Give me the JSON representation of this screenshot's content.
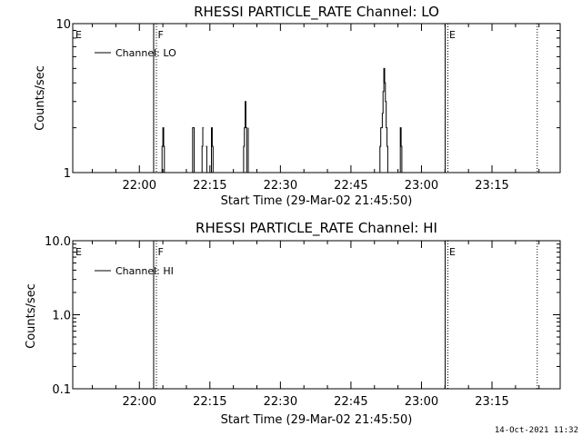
{
  "timestamp": "14-Oct-2021 11:32",
  "chart_data": [
    {
      "type": "line",
      "title": "RHESSI PARTICLE_RATE Channel: LO",
      "xlabel": "Start Time (29-Mar-02 21:45:50)",
      "ylabel": "Counts/sec",
      "yscale": "log",
      "ylim": [
        1,
        10
      ],
      "xlim": [
        "21:45:50",
        "23:29:30"
      ],
      "xticks": [
        "22:00",
        "22:15",
        "22:30",
        "22:45",
        "23:00",
        "23:15"
      ],
      "yticks": [
        "1",
        "10"
      ],
      "legend": {
        "label": "Channel: LO",
        "placement": "top-left"
      },
      "markers": [
        {
          "label": "E",
          "time": "21:45:50",
          "style": "none"
        },
        {
          "label": "F",
          "time": "22:03:20",
          "style": "solid+dotted"
        },
        {
          "label": "E",
          "time": "23:05:20",
          "style": "solid+dotted"
        },
        {
          "time": "23:24:20",
          "style": "dotted"
        }
      ],
      "series": [
        {
          "name": "Channel: LO",
          "x": [
            "22:04:40",
            "22:04:50",
            "22:05:00",
            "22:05:10",
            "22:05:20",
            "22:11:10",
            "22:11:20",
            "22:11:30",
            "22:11:40",
            "22:13:10",
            "22:13:20",
            "22:13:30",
            "22:13:40",
            "22:14:10",
            "22:14:20",
            "22:15:10",
            "22:15:20",
            "22:15:30",
            "22:15:40",
            "22:22:00",
            "22:22:10",
            "22:22:20",
            "22:22:30",
            "22:22:40",
            "22:22:50",
            "22:23:00",
            "22:23:10",
            "22:51:00",
            "22:51:10",
            "22:51:20",
            "22:51:30",
            "22:51:40",
            "22:51:50",
            "22:52:00",
            "22:52:10",
            "22:52:20",
            "22:52:30",
            "22:52:40",
            "22:52:50",
            "22:53:00",
            "22:55:20",
            "22:55:30",
            "22:55:40",
            "22:55:50"
          ],
          "y": [
            1,
            1.5,
            2,
            1.5,
            1,
            1,
            2,
            2,
            1,
            1,
            1.5,
            2,
            2,
            1.5,
            1,
            1,
            2,
            1.5,
            1,
            1,
            1.5,
            2,
            3,
            2,
            1,
            1,
            2,
            1,
            1.5,
            2,
            2,
            2.5,
            3.5,
            5,
            4,
            3,
            2,
            1.5,
            1,
            1,
            1,
            2,
            1.5,
            1
          ]
        }
      ]
    },
    {
      "type": "line",
      "title": "RHESSI PARTICLE_RATE Channel: HI",
      "xlabel": "Start Time (29-Mar-02 21:45:50)",
      "ylabel": "Counts/sec",
      "yscale": "log",
      "ylim": [
        0.1,
        10
      ],
      "xlim": [
        "21:45:50",
        "23:29:30"
      ],
      "xticks": [
        "22:00",
        "22:15",
        "22:30",
        "22:45",
        "23:00",
        "23:15"
      ],
      "yticks": [
        "0.1",
        "1.0",
        "10.0"
      ],
      "legend": {
        "label": "Channel: HI",
        "placement": "top-left"
      },
      "markers": [
        {
          "label": "E",
          "time": "21:45:50",
          "style": "none"
        },
        {
          "label": "F",
          "time": "22:03:20",
          "style": "solid+dotted"
        },
        {
          "label": "E",
          "time": "23:05:20",
          "style": "solid+dotted"
        },
        {
          "time": "23:24:20",
          "style": "dotted"
        }
      ],
      "series": [
        {
          "name": "Channel: HI",
          "x": [],
          "y": []
        }
      ]
    }
  ]
}
